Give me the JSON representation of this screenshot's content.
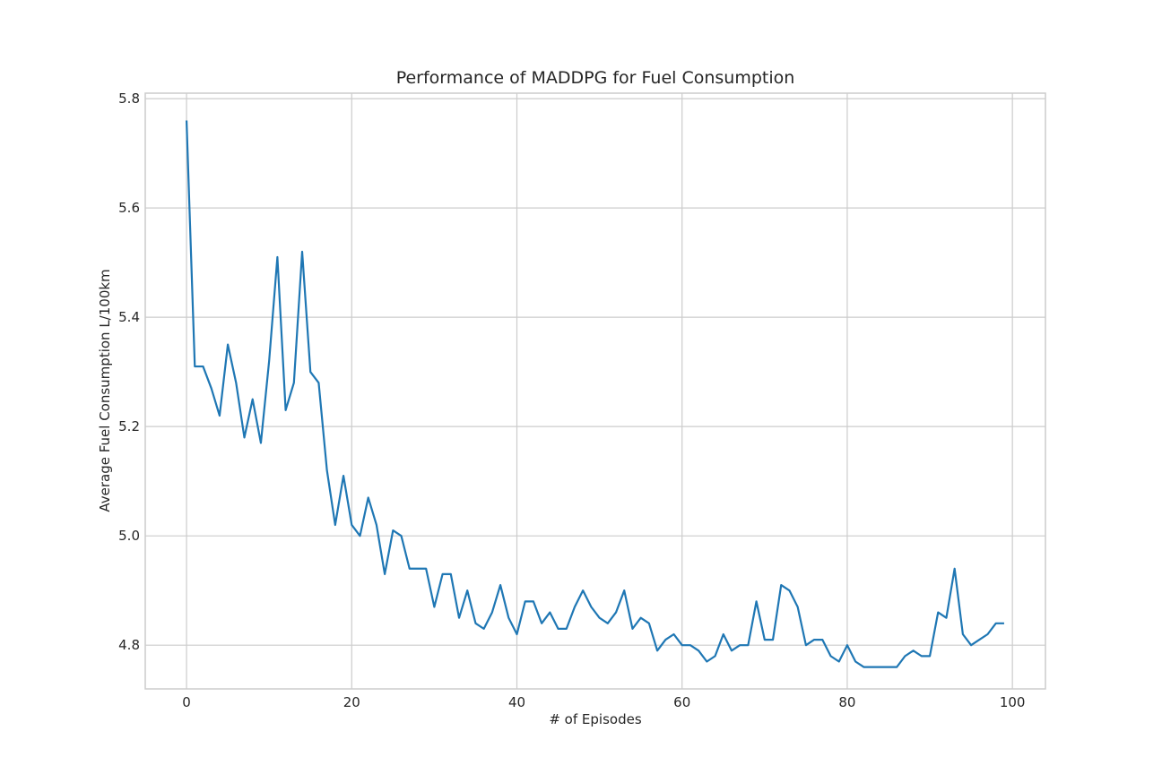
{
  "chart_data": {
    "type": "line",
    "title": "Performance of MADDPG for Fuel Consumption",
    "xlabel": "# of Episodes",
    "ylabel": "Average Fuel Consumption L/100km",
    "xlim": [
      -5,
      104
    ],
    "ylim": [
      4.72,
      5.81
    ],
    "xticks": [
      0,
      20,
      40,
      60,
      80,
      100
    ],
    "yticks": [
      4.8,
      5.0,
      5.2,
      5.4,
      5.6,
      5.8
    ],
    "xtick_labels": [
      "0",
      "20",
      "40",
      "60",
      "80",
      "100"
    ],
    "ytick_labels": [
      "4.8",
      "5.0",
      "5.2",
      "5.4",
      "5.6",
      "5.8"
    ],
    "grid": true,
    "series": [
      {
        "color": "#1f77b4",
        "x": [
          0,
          1,
          2,
          3,
          4,
          5,
          6,
          7,
          8,
          9,
          10,
          11,
          12,
          13,
          14,
          15,
          16,
          17,
          18,
          19,
          20,
          21,
          22,
          23,
          24,
          25,
          26,
          27,
          28,
          29,
          30,
          31,
          32,
          33,
          34,
          35,
          36,
          37,
          38,
          39,
          40,
          41,
          42,
          43,
          44,
          45,
          46,
          47,
          48,
          49,
          50,
          51,
          52,
          53,
          54,
          55,
          56,
          57,
          58,
          59,
          60,
          61,
          62,
          63,
          64,
          65,
          66,
          67,
          68,
          69,
          70,
          71,
          72,
          73,
          74,
          75,
          76,
          77,
          78,
          79,
          80,
          81,
          82,
          83,
          84,
          85,
          86,
          87,
          88,
          89,
          90,
          91,
          92,
          93,
          94,
          95,
          96,
          97,
          98,
          99
        ],
        "values": [
          5.76,
          5.31,
          5.31,
          5.27,
          5.22,
          5.35,
          5.28,
          5.18,
          5.25,
          5.17,
          5.32,
          5.51,
          5.23,
          5.28,
          5.52,
          5.3,
          5.28,
          5.12,
          5.02,
          5.11,
          5.02,
          5.0,
          5.07,
          5.02,
          4.93,
          5.01,
          5.0,
          4.94,
          4.94,
          4.94,
          4.87,
          4.93,
          4.93,
          4.85,
          4.9,
          4.84,
          4.83,
          4.86,
          4.91,
          4.85,
          4.82,
          4.88,
          4.88,
          4.84,
          4.86,
          4.83,
          4.83,
          4.87,
          4.9,
          4.87,
          4.85,
          4.84,
          4.86,
          4.9,
          4.83,
          4.85,
          4.84,
          4.79,
          4.81,
          4.82,
          4.8,
          4.8,
          4.79,
          4.77,
          4.78,
          4.82,
          4.79,
          4.8,
          4.8,
          4.88,
          4.81,
          4.81,
          4.91,
          4.9,
          4.87,
          4.8,
          4.81,
          4.81,
          4.78,
          4.77,
          4.8,
          4.77,
          4.76,
          4.76,
          4.76,
          4.76,
          4.76,
          4.78,
          4.79,
          4.78,
          4.78,
          4.86,
          4.85,
          4.94,
          4.82,
          4.8,
          4.81,
          4.82,
          4.84,
          4.84
        ]
      }
    ]
  }
}
